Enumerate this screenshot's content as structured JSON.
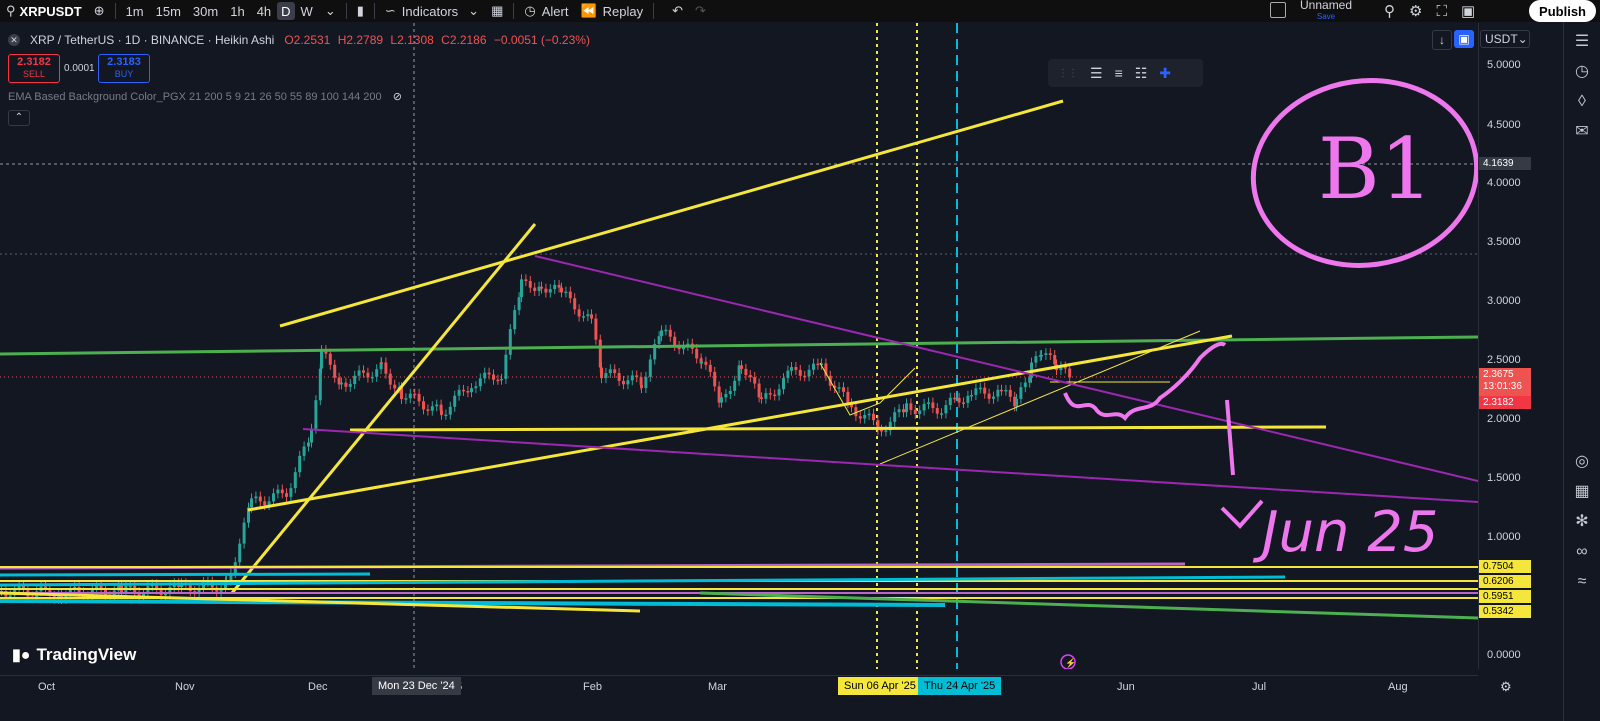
{
  "topbar": {
    "symbol": "XRPUSDT",
    "intervals": [
      "1m",
      "15m",
      "30m",
      "1h",
      "4h",
      "D",
      "W"
    ],
    "active_interval": "D",
    "indicators": "Indicators",
    "alert": "Alert",
    "replay": "Replay",
    "layout_name": "Unnamed",
    "save": "Save",
    "publish": "Publish"
  },
  "legend": {
    "title": "XRP / TetherUS · 1D · BINANCE · Heikin Ashi",
    "open": "O2.2531",
    "high": "H2.2789",
    "low": "L2.1308",
    "close": "C2.2186",
    "change": "−0.0051 (−0.23%)"
  },
  "trade": {
    "sell_price": "2.3182",
    "sell_label": "SELL",
    "spread": "0.0001",
    "buy_price": "2.3183",
    "buy_label": "BUY"
  },
  "indicator_label": "EMA Based Background Color_PGX 21 200 5 9 21 26 50 55 89 100 144 200",
  "currency": "USDT",
  "y_axis": {
    "labels": [
      "5.0000",
      "4.5000",
      "4.0000",
      "3.5000",
      "3.0000",
      "2.5000",
      "2.0000",
      "1.5000",
      "1.0000",
      "0.0000"
    ],
    "crosshair_price": "4.1639",
    "last_price": "2.3675",
    "countdown": "13:01:36",
    "bid_price": "2.3182",
    "level_tags": [
      "0.7504",
      "0.6206",
      "0.5951",
      "0.5342"
    ]
  },
  "x_axis": {
    "labels": [
      "Oct",
      "Nov",
      "Dec",
      "25",
      "Feb",
      "Mar",
      "Jun",
      "Jul",
      "Aug"
    ],
    "crosshair_date": "Mon 23 Dec '24",
    "marker_1": "Sun 06 Apr '25",
    "marker_2": "Thu 24 Apr '25"
  },
  "annotation": {
    "circle_text": "B1",
    "target_text": "Jun 25"
  },
  "brand": "TradingView",
  "colors": {
    "background": "#131722",
    "yellow": "#f5e63c",
    "purple": "#9c27b0",
    "green": "#4caf50",
    "cyan": "#00bcd4",
    "pink": "#ee77ee",
    "candle_up": "#26a69a",
    "candle_down": "#ef5350"
  }
}
